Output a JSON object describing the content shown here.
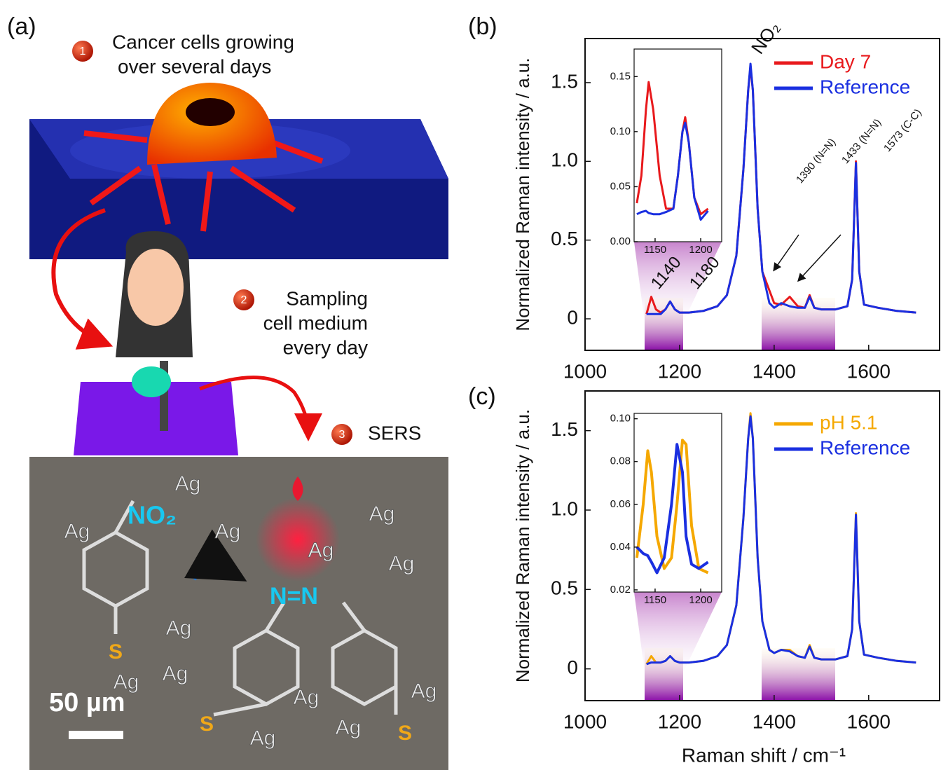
{
  "panel_a": {
    "label": "(a)",
    "step1_number": "1",
    "step1_lines": [
      "Cancer cells growing",
      "over several days"
    ],
    "step2_number": "2",
    "step2_lines": [
      "Sampling",
      "cell medium",
      "every day"
    ],
    "step3_number": "3",
    "step3_text": "SERS",
    "no2": "NO₂",
    "azo": "N=N",
    "sulfur": [
      "S",
      "S",
      "S"
    ],
    "ag_labels": [
      "Ag",
      "Ag",
      "Ag",
      "Ag",
      "Ag",
      "Ag",
      "Ag",
      "Ag",
      "Ag",
      "Ag",
      "Ag",
      "Ag",
      "Ag"
    ],
    "scale_bar": "50 µm"
  },
  "chart_data": [
    {
      "type": "line",
      "panel_label": "(b)",
      "y_label": "Normalized Raman intensity / a.u.",
      "xlim": [
        1000,
        1750
      ],
      "xticks": [
        1000,
        1200,
        1400,
        1600
      ],
      "ylim": [
        -0.2,
        1.78
      ],
      "yticks": [
        0,
        {
          "value": 0.5,
          "label": "0.5"
        },
        {
          "value": 1,
          "label": "1.0"
        },
        1.5
      ],
      "annotations": [
        "NO₂",
        "1390 (N=N)",
        "1433 (N=N)",
        "1573 (C-C)",
        "1140",
        "1180"
      ],
      "x": [
        1130,
        1140,
        1150,
        1160,
        1170,
        1180,
        1190,
        1200,
        1220,
        1250,
        1280,
        1300,
        1320,
        1335,
        1345,
        1350,
        1355,
        1365,
        1375,
        1390,
        1400,
        1415,
        1433,
        1450,
        1465,
        1475,
        1485,
        1500,
        1530,
        1555,
        1565,
        1573,
        1580,
        1590,
        1620,
        1660,
        1700
      ],
      "series": [
        {
          "name": "Day 7",
          "color": "#e8191c",
          "values": [
            0.03,
            0.14,
            0.06,
            0.04,
            0.06,
            0.11,
            0.06,
            0.04,
            0.04,
            0.05,
            0.08,
            0.15,
            0.4,
            0.95,
            1.45,
            1.6,
            1.45,
            0.7,
            0.3,
            0.18,
            0.1,
            0.09,
            0.14,
            0.08,
            0.07,
            0.15,
            0.07,
            0.06,
            0.06,
            0.08,
            0.25,
            1.0,
            0.3,
            0.09,
            0.07,
            0.05,
            0.04
          ]
        },
        {
          "name": "Reference",
          "color": "#1a2fe0",
          "values": [
            0.03,
            0.03,
            0.03,
            0.03,
            0.06,
            0.11,
            0.06,
            0.04,
            0.04,
            0.05,
            0.08,
            0.15,
            0.4,
            0.95,
            1.45,
            1.62,
            1.45,
            0.7,
            0.3,
            0.1,
            0.07,
            0.1,
            0.08,
            0.07,
            0.07,
            0.14,
            0.07,
            0.06,
            0.06,
            0.08,
            0.25,
            0.99,
            0.3,
            0.09,
            0.07,
            0.05,
            0.04
          ]
        }
      ]
    },
    {
      "type": "line",
      "panel_label": "(c)",
      "y_label": "Normalized Raman intensity / a.u.",
      "x_label": "Raman shift / cm⁻¹",
      "xlim": [
        1000,
        1750
      ],
      "xticks": [
        1000,
        1200,
        1400,
        1600
      ],
      "ylim": [
        -0.2,
        1.75
      ],
      "yticks": [
        0,
        {
          "value": 0.5,
          "label": "0.5"
        },
        {
          "value": 1,
          "label": "1.0"
        },
        1.5
      ],
      "x": [
        1130,
        1140,
        1150,
        1160,
        1170,
        1180,
        1190,
        1200,
        1220,
        1250,
        1280,
        1300,
        1320,
        1335,
        1345,
        1350,
        1355,
        1365,
        1375,
        1390,
        1400,
        1415,
        1433,
        1450,
        1465,
        1475,
        1485,
        1500,
        1530,
        1555,
        1565,
        1573,
        1580,
        1590,
        1620,
        1660,
        1700
      ],
      "series": [
        {
          "name": "pH 5.1",
          "color": "#f5a800",
          "values": [
            0.03,
            0.08,
            0.04,
            0.04,
            0.05,
            0.08,
            0.05,
            0.04,
            0.04,
            0.05,
            0.08,
            0.15,
            0.4,
            0.95,
            1.45,
            1.61,
            1.45,
            0.7,
            0.3,
            0.12,
            0.1,
            0.12,
            0.12,
            0.08,
            0.07,
            0.15,
            0.07,
            0.06,
            0.06,
            0.08,
            0.25,
            0.98,
            0.3,
            0.09,
            0.07,
            0.05,
            0.04
          ]
        },
        {
          "name": "Reference",
          "color": "#1a2fe0",
          "values": [
            0.03,
            0.04,
            0.04,
            0.04,
            0.05,
            0.08,
            0.05,
            0.04,
            0.04,
            0.05,
            0.08,
            0.15,
            0.4,
            0.95,
            1.45,
            1.59,
            1.45,
            0.7,
            0.3,
            0.12,
            0.1,
            0.12,
            0.11,
            0.08,
            0.07,
            0.14,
            0.07,
            0.06,
            0.06,
            0.08,
            0.25,
            0.97,
            0.3,
            0.09,
            0.07,
            0.05,
            0.04
          ]
        }
      ]
    },
    {
      "type": "line",
      "xlim": [
        1127,
        1223
      ],
      "xticks": [
        1150,
        1200
      ],
      "ylim": [
        0,
        0.175
      ],
      "yticks": [
        {
          "value": 0,
          "label": "0.00"
        },
        0.05,
        {
          "value": 0.1,
          "label": "0.10"
        },
        0.15
      ],
      "x": [
        1130,
        1135,
        1140,
        1143,
        1148,
        1155,
        1162,
        1170,
        1175,
        1180,
        1183,
        1187,
        1193,
        1200,
        1208
      ],
      "series": [
        {
          "name": "Day 7",
          "color": "#e8191c",
          "values": [
            0.035,
            0.06,
            0.12,
            0.145,
            0.12,
            0.06,
            0.03,
            0.03,
            0.06,
            0.1,
            0.113,
            0.09,
            0.04,
            0.025,
            0.03
          ]
        },
        {
          "name": "Reference",
          "color": "#1a2fe0",
          "values": [
            0.025,
            0.027,
            0.028,
            0.026,
            0.025,
            0.025,
            0.027,
            0.03,
            0.06,
            0.1,
            0.108,
            0.09,
            0.04,
            0.02,
            0.028
          ]
        }
      ]
    },
    {
      "type": "line",
      "xlim": [
        1127,
        1223
      ],
      "xticks": [
        1150,
        1200
      ],
      "ylim": [
        0.019,
        0.1025
      ],
      "yticks": [
        0.02,
        0.04,
        0.06,
        0.08,
        {
          "value": 0.1,
          "label": "0.10"
        }
      ],
      "x": [
        1130,
        1137,
        1142,
        1146,
        1152,
        1160,
        1168,
        1174,
        1180,
        1184,
        1190,
        1198,
        1208
      ],
      "series": [
        {
          "name": "pH 5.1",
          "color": "#f5a800",
          "values": [
            0.035,
            0.06,
            0.085,
            0.075,
            0.045,
            0.03,
            0.035,
            0.06,
            0.09,
            0.088,
            0.05,
            0.03,
            0.028
          ]
        },
        {
          "name": "Reference",
          "color": "#1a2fe0",
          "values": [
            0.04,
            0.037,
            0.036,
            0.033,
            0.028,
            0.035,
            0.06,
            0.088,
            0.075,
            0.045,
            0.032,
            0.03,
            0.033
          ]
        }
      ]
    }
  ]
}
